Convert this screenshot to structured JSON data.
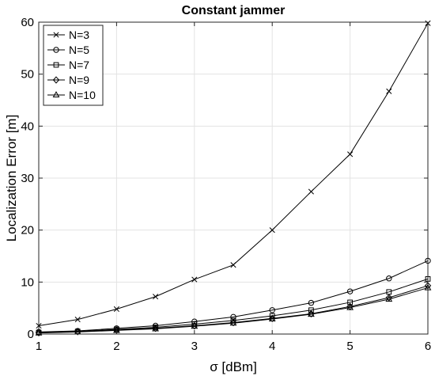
{
  "chart_data": {
    "type": "line",
    "title": "Constant jammer",
    "xlabel": "σ [dBm]",
    "ylabel": "Localization Error [m]",
    "xlim": [
      1,
      6
    ],
    "ylim": [
      0,
      60
    ],
    "xticks": [
      1,
      2,
      3,
      4,
      5,
      6
    ],
    "yticks": [
      0,
      10,
      20,
      30,
      40,
      50,
      60
    ],
    "grid": true,
    "legend_position": "top-left",
    "x": [
      1,
      1.5,
      2,
      2.5,
      3,
      3.5,
      4,
      4.5,
      5,
      5.5,
      6
    ],
    "series": [
      {
        "name": "N=3",
        "marker": "x",
        "values": [
          1.6,
          2.8,
          4.8,
          7.2,
          10.5,
          13.3,
          20.0,
          27.4,
          34.6,
          46.7,
          59.8
        ]
      },
      {
        "name": "N=5",
        "marker": "circle",
        "values": [
          0.4,
          0.6,
          1.1,
          1.6,
          2.4,
          3.3,
          4.6,
          6.0,
          8.2,
          10.7,
          14.1
        ]
      },
      {
        "name": "N=7",
        "marker": "square",
        "values": [
          0.3,
          0.5,
          0.9,
          1.3,
          1.9,
          2.6,
          3.5,
          4.6,
          6.1,
          8.1,
          10.6
        ]
      },
      {
        "name": "N=9",
        "marker": "diamond",
        "values": [
          0.25,
          0.45,
          0.8,
          1.1,
          1.6,
          2.2,
          3.0,
          3.9,
          5.3,
          7.0,
          9.3
        ]
      },
      {
        "name": "N=10",
        "marker": "triangle",
        "values": [
          0.2,
          0.4,
          0.7,
          1.0,
          1.5,
          2.1,
          2.9,
          3.8,
          5.1,
          6.7,
          8.9
        ]
      }
    ]
  }
}
